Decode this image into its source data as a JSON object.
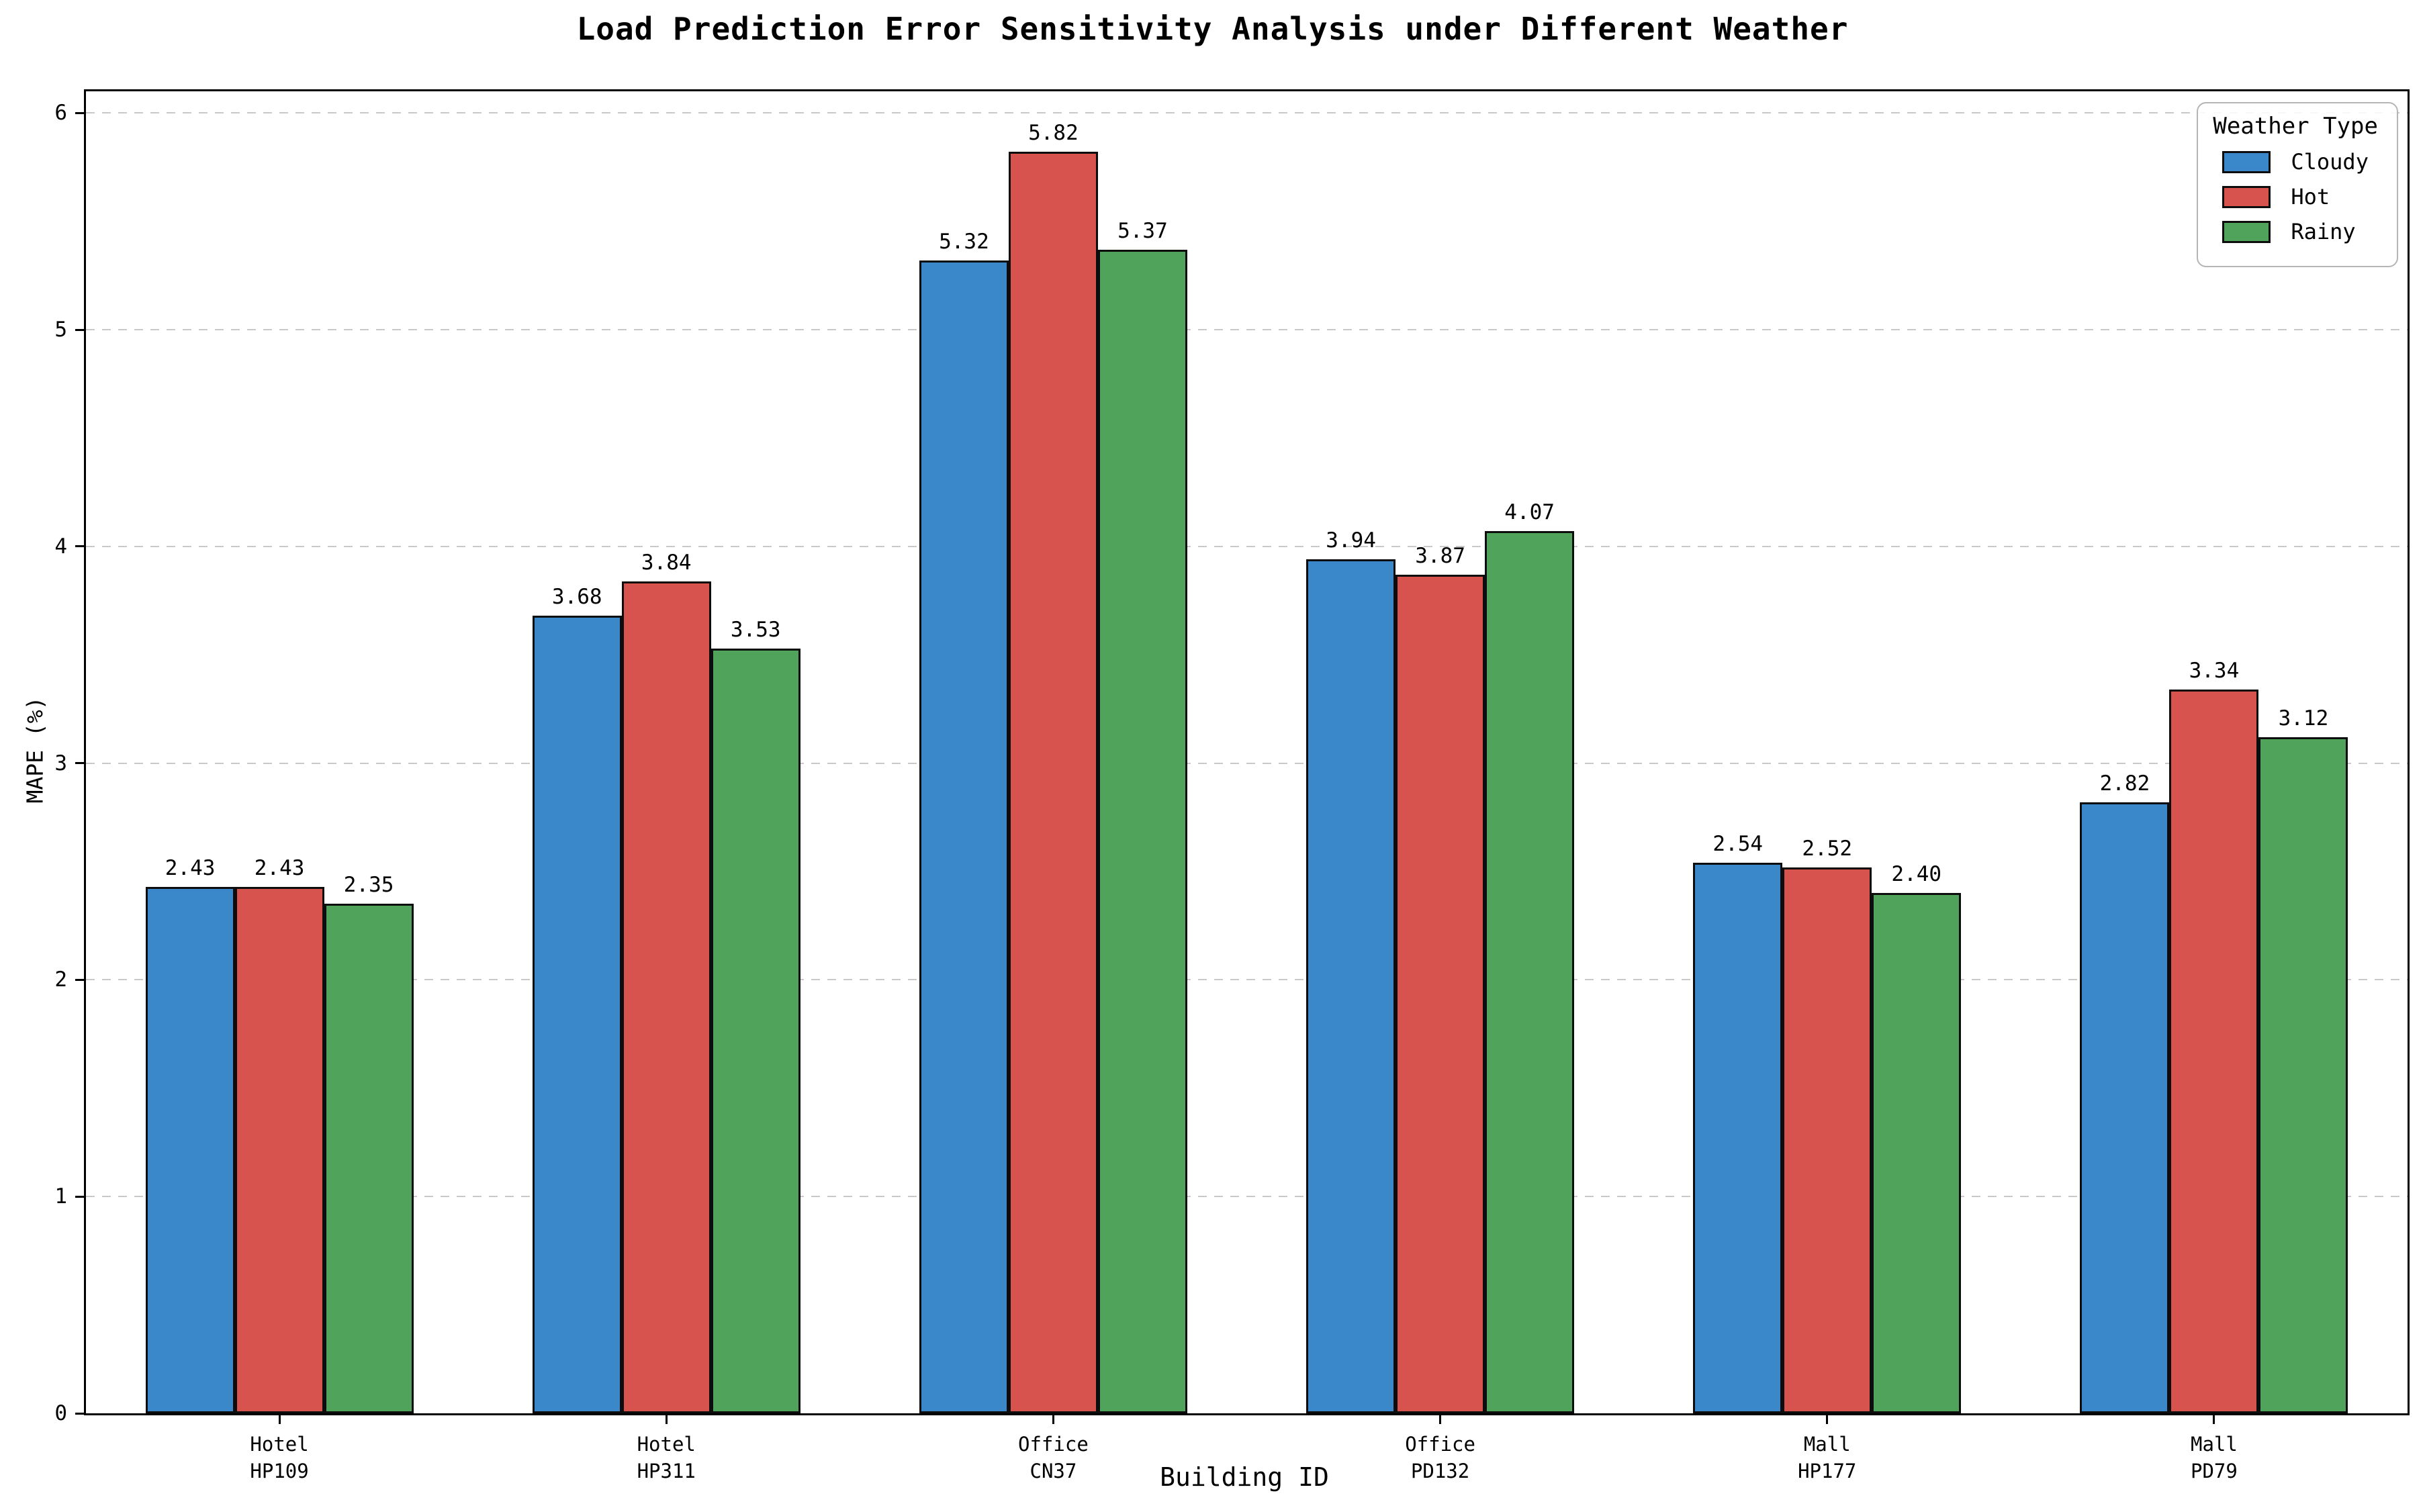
{
  "chart_data": {
    "type": "bar",
    "title": "Load Prediction Error Sensitivity Analysis under Different Weather",
    "xlabel": "Building ID",
    "ylabel": "MAPE (%)",
    "ylim": [
      0,
      6.1
    ],
    "y_ticks": [
      0,
      1,
      2,
      3,
      4,
      5,
      6
    ],
    "grid": "horizontal dashed gridlines at integer ticks",
    "value_label_decimals": 2,
    "legend": {
      "title": "Weather Type",
      "position": "upper right"
    },
    "categories": [
      {
        "line1": "Hotel",
        "line2": "HP109"
      },
      {
        "line1": "Hotel",
        "line2": "HP311"
      },
      {
        "line1": "Office",
        "line2": "CN37"
      },
      {
        "line1": "Office",
        "line2": "PD132"
      },
      {
        "line1": "Mall",
        "line2": "HP177"
      },
      {
        "line1": "Mall",
        "line2": "PD79"
      }
    ],
    "series": [
      {
        "name": "Cloudy",
        "color": "#3A87C9",
        "values": [
          2.43,
          3.68,
          5.32,
          3.94,
          2.54,
          2.82
        ]
      },
      {
        "name": "Hot",
        "color": "#D7544E",
        "values": [
          2.43,
          3.84,
          5.82,
          3.87,
          2.52,
          3.34
        ]
      },
      {
        "name": "Rainy",
        "color": "#4FA35A",
        "values": [
          2.35,
          3.53,
          5.37,
          4.07,
          2.4,
          3.12
        ]
      }
    ],
    "style": {
      "background": "#ffffff",
      "bar_edge_color": "#0d0d0d",
      "axis_color": "#000000",
      "gridline_color": "#c9c9c9",
      "text_color": "#000000"
    }
  }
}
